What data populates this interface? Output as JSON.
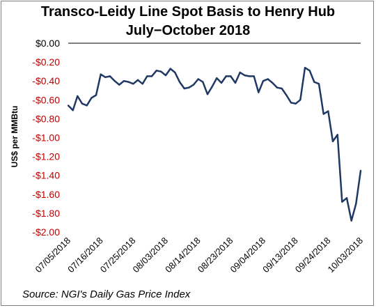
{
  "chart_data": {
    "type": "line",
    "title_line1": "Transco-Leidy Line Spot Basis to Henry Hub",
    "title_line2": "July−October 2018",
    "ylabel": "US$ per MMBtu",
    "source": "Source: NGI's Daily Gas Price Index",
    "ylim": [
      -2.0,
      0.0
    ],
    "ytick_labels": [
      "$0.00",
      "-$0.20",
      "-$0.40",
      "-$0.60",
      "-$0.80",
      "-$1.00",
      "-$1.20",
      "-$1.40",
      "-$1.60",
      "-$1.80",
      "-$2.00"
    ],
    "ytick_values": [
      0.0,
      -0.2,
      -0.4,
      -0.6,
      -0.8,
      -1.0,
      -1.2,
      -1.4,
      -1.6,
      -1.8,
      -2.0
    ],
    "xtick_labels": [
      "07/05/2018",
      "07/16/2018",
      "07/25/2018",
      "08/03/2018",
      "08/14/2018",
      "08/23/2018",
      "09/04/2018",
      "09/13/2018",
      "09/24/2018",
      "10/03/2018"
    ],
    "xtick_index": [
      0,
      7,
      14,
      21,
      28,
      35,
      42,
      49,
      56,
      63
    ],
    "line_color": "#1f3864",
    "negative_tick_color": "#c00000",
    "series": [
      {
        "values": [
          -0.66,
          -0.71,
          -0.56,
          -0.64,
          -0.66,
          -0.58,
          -0.55,
          -0.33,
          -0.36,
          -0.35,
          -0.4,
          -0.44,
          -0.4,
          -0.41,
          -0.43,
          -0.39,
          -0.43,
          -0.35,
          -0.35,
          -0.29,
          -0.3,
          -0.34,
          -0.27,
          -0.31,
          -0.41,
          -0.48,
          -0.47,
          -0.44,
          -0.38,
          -0.41,
          -0.54,
          -0.46,
          -0.37,
          -0.42,
          -0.35,
          -0.35,
          -0.42,
          -0.31,
          -0.34,
          -0.35,
          -0.35,
          -0.52,
          -0.4,
          -0.38,
          -0.42,
          -0.47,
          -0.48,
          -0.55,
          -0.63,
          -0.64,
          -0.6,
          -0.26,
          -0.29,
          -0.41,
          -0.43,
          -0.75,
          -0.72,
          -1.04,
          -0.97,
          -1.68,
          -1.64,
          -1.88,
          -1.7,
          -1.35
        ]
      }
    ]
  }
}
